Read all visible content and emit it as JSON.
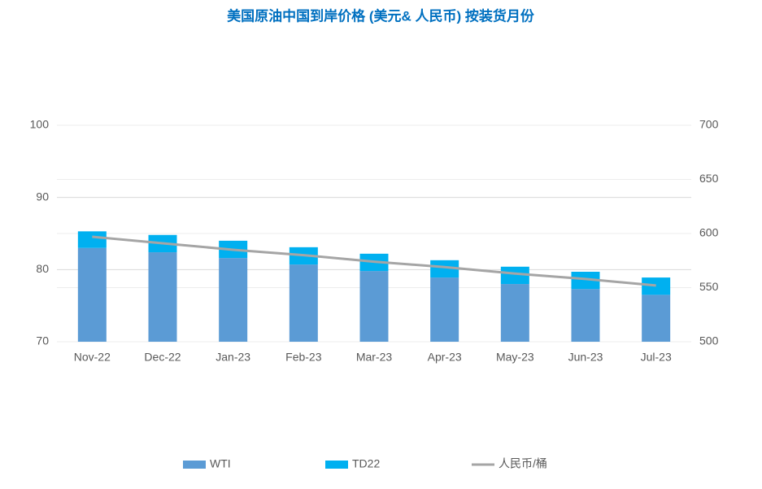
{
  "chart_data": {
    "type": "bar",
    "stacked": true,
    "title": "美国原油中国到岸价格 (美元& 人民币) 按装货月份",
    "categories": [
      "Nov-22",
      "Dec-22",
      "Jan-23",
      "Feb-23",
      "Mar-23",
      "Apr-23",
      "May-23",
      "Jun-23",
      "Jul-23"
    ],
    "series": [
      {
        "name": "WTI",
        "color": "#5b9bd5",
        "values": [
          83.0,
          82.4,
          81.6,
          80.7,
          79.8,
          78.9,
          78.0,
          77.3,
          76.5
        ]
      },
      {
        "name": "TD22",
        "color": "#00b0f0",
        "values": [
          2.3,
          2.4,
          2.4,
          2.4,
          2.4,
          2.4,
          2.4,
          2.4,
          2.4
        ]
      },
      {
        "name": "人民币/桶",
        "color": "#a5a5a5",
        "type": "line",
        "axis": "y2",
        "values": [
          597,
          591,
          585,
          580,
          574,
          569,
          563,
          558,
          552
        ]
      }
    ],
    "ylim": [
      70,
      100
    ],
    "yticks": [
      70,
      80,
      90,
      100
    ],
    "y2lim": [
      500,
      700
    ],
    "y2ticks": [
      500,
      550,
      600,
      650,
      700
    ],
    "grid": true,
    "legend": "bottom"
  }
}
